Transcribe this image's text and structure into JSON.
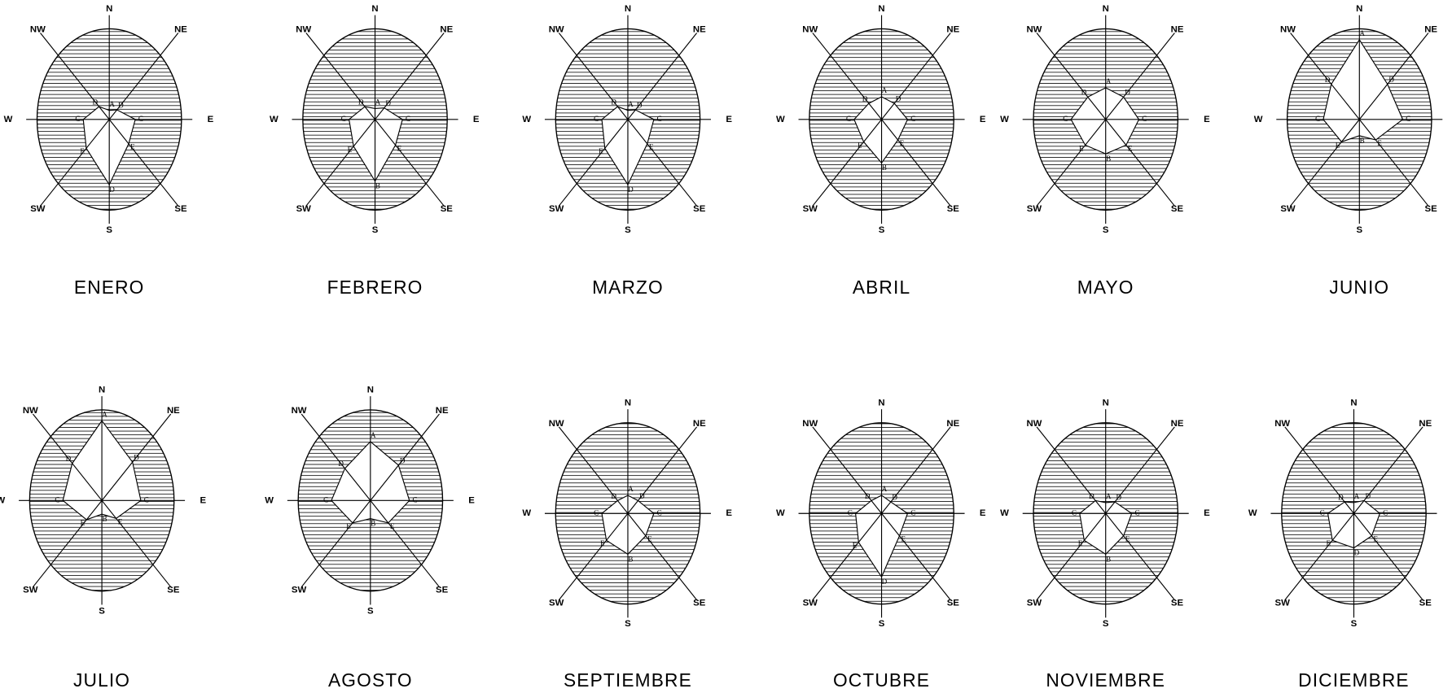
{
  "compass": [
    "N",
    "NE",
    "E",
    "SE",
    "S",
    "SW",
    "W",
    "NW"
  ],
  "roses": [
    {
      "month": "ENERO",
      "letters": [
        "A",
        "D",
        "C",
        "E",
        "D",
        "E",
        "C",
        "D"
      ],
      "radii": [
        10,
        15,
        36,
        38,
        72,
        45,
        36,
        20
      ]
    },
    {
      "month": "FEBRERO",
      "letters": [
        "A",
        "D",
        "C",
        "E",
        "B",
        "E",
        "C",
        "D"
      ],
      "radii": [
        12,
        18,
        38,
        40,
        68,
        42,
        36,
        20
      ]
    },
    {
      "month": "MARZO",
      "letters": [
        "A",
        "D",
        "C",
        "E",
        "D",
        "E",
        "C",
        "D"
      ],
      "radii": [
        10,
        15,
        36,
        38,
        72,
        45,
        36,
        20
      ]
    },
    {
      "month": "ABRIL",
      "letters": [
        "A",
        "D",
        "C",
        "E",
        "B",
        "E",
        "C",
        "D"
      ],
      "radii": [
        25,
        25,
        36,
        32,
        48,
        35,
        38,
        25
      ]
    },
    {
      "month": "MAYO",
      "letters": [
        "A",
        "D",
        "C",
        "E",
        "B",
        "E",
        "C",
        "D"
      ],
      "radii": [
        35,
        35,
        46,
        40,
        38,
        40,
        48,
        35
      ]
    },
    {
      "month": "JUNIO",
      "letters": [
        "A",
        "D",
        "C",
        "E",
        "B",
        "E",
        "C",
        "D"
      ],
      "radii": [
        88,
        55,
        60,
        32,
        18,
        35,
        50,
        55
      ]
    },
    {
      "month": "JULIO",
      "letters": [
        "A",
        "D",
        "C",
        "E",
        "B",
        "E",
        "C",
        "D"
      ],
      "radii": [
        88,
        60,
        54,
        28,
        15,
        30,
        54,
        58
      ]
    },
    {
      "month": "AGOSTO",
      "letters": [
        "A",
        "D",
        "C",
        "E",
        "B",
        "E",
        "C",
        "D"
      ],
      "radii": [
        65,
        55,
        54,
        35,
        20,
        35,
        54,
        50
      ]
    },
    {
      "month": "SEPTIEMBRE",
      "letters": [
        "A",
        "D",
        "C",
        "E",
        "B",
        "E",
        "C",
        "D"
      ],
      "radii": [
        20,
        20,
        36,
        35,
        45,
        42,
        36,
        20
      ]
    },
    {
      "month": "OCTUBRE",
      "letters": [
        "A",
        "D",
        "C",
        "E",
        "D",
        "E",
        "C",
        "D"
      ],
      "radii": [
        20,
        18,
        36,
        35,
        70,
        45,
        36,
        20
      ]
    },
    {
      "month": "NOVIEMBRE",
      "letters": [
        "A",
        "D",
        "C",
        "E",
        "B",
        "E",
        "C",
        "D"
      ],
      "radii": [
        12,
        18,
        36,
        35,
        45,
        42,
        36,
        20
      ]
    },
    {
      "month": "DICIEMBRE",
      "letters": [
        "A",
        "D",
        "C",
        "E",
        "D",
        "E",
        "C",
        "D"
      ],
      "radii": [
        12,
        20,
        36,
        35,
        38,
        42,
        36,
        18
      ]
    }
  ]
}
